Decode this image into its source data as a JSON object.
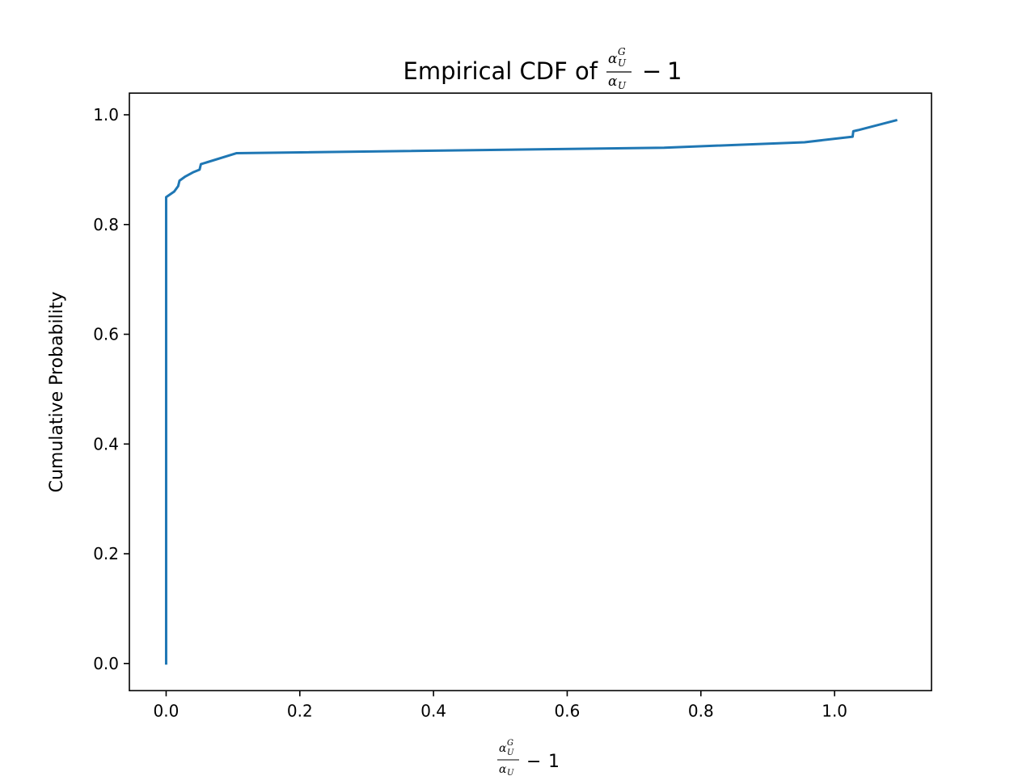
{
  "chart_data": {
    "type": "line",
    "title": "Empirical CDF of",
    "xlabel": "",
    "ylabel": "Cumulative Probability",
    "math_label": {
      "num_base": "α",
      "num_sub": "U",
      "num_sup": "G",
      "den_base": "α",
      "den_sub": "U",
      "minus": "−",
      "one": "1"
    },
    "xlim": [
      -0.055,
      1.145
    ],
    "ylim": [
      -0.0495,
      1.0395
    ],
    "x_ticks": [
      {
        "value": 0.0,
        "label": "0.0"
      },
      {
        "value": 0.2,
        "label": "0.2"
      },
      {
        "value": 0.4,
        "label": "0.4"
      },
      {
        "value": 0.6,
        "label": "0.6"
      },
      {
        "value": 0.8,
        "label": "0.8"
      },
      {
        "value": 1.0,
        "label": "1.0"
      }
    ],
    "y_ticks": [
      {
        "value": 0.0,
        "label": "0.0"
      },
      {
        "value": 0.2,
        "label": "0.2"
      },
      {
        "value": 0.4,
        "label": "0.4"
      },
      {
        "value": 0.6,
        "label": "0.6"
      },
      {
        "value": 0.8,
        "label": "0.8"
      },
      {
        "value": 1.0,
        "label": "1.0"
      }
    ],
    "grid": false,
    "series": [
      {
        "color": "#1f77b4",
        "x": [
          0.0,
          0.0,
          0.0,
          0.0,
          0.012,
          0.018,
          0.02,
          0.028,
          0.04,
          0.05,
          0.052,
          0.105,
          0.745,
          0.955,
          1.027,
          1.028,
          1.035,
          1.092
        ],
        "y": [
          0.0,
          0.5,
          0.84,
          0.85,
          0.86,
          0.87,
          0.88,
          0.887,
          0.895,
          0.9,
          0.91,
          0.93,
          0.94,
          0.95,
          0.96,
          0.97,
          0.972,
          0.99
        ]
      }
    ]
  }
}
